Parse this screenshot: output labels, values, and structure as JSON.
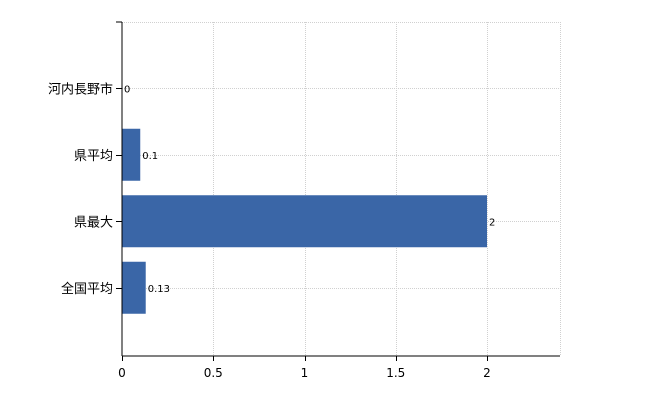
{
  "chart_data": {
    "type": "bar",
    "orientation": "horizontal",
    "categories": [
      "河内長野市",
      "県平均",
      "県最大",
      "全国平均"
    ],
    "values": [
      0,
      0.1,
      2,
      0.13
    ],
    "data_labels": [
      "0",
      "0.1",
      "2",
      "0.13"
    ],
    "xlim": [
      0,
      2.4
    ],
    "xticks": [
      0,
      0.5,
      1,
      1.5,
      2
    ],
    "xtick_labels": [
      "0",
      "0.5",
      "1",
      "1.5",
      "2"
    ],
    "grid": true,
    "title": "",
    "xlabel": "",
    "ylabel": "",
    "colors": {
      "bar": "#3a66a7"
    }
  }
}
